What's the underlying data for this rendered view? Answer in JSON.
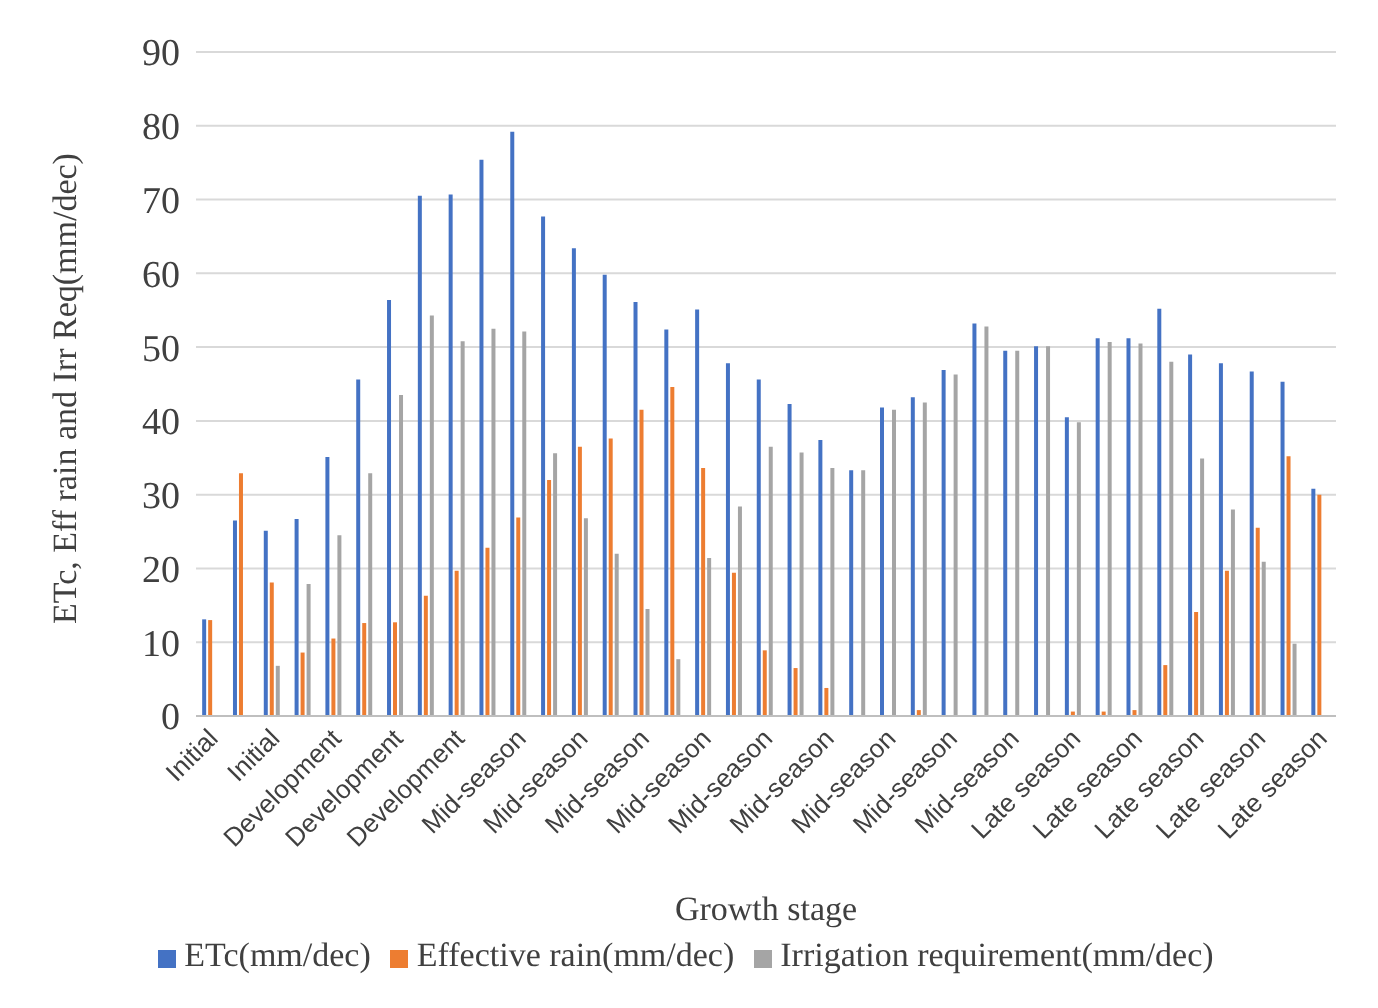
{
  "chart_data": {
    "type": "bar",
    "xlabel": "Growth stage",
    "ylabel": "ETc, Eff rain and Irr Req(mm/dec)",
    "categories": [
      "Initial",
      null,
      "Initial",
      null,
      "Development",
      null,
      "Development",
      null,
      "Development",
      null,
      "Mid-season",
      null,
      "Mid-season",
      null,
      "Mid-season",
      null,
      "Mid-season",
      null,
      "Mid-season",
      null,
      "Mid-season",
      null,
      "Mid-season",
      null,
      "Mid-season",
      null,
      "Mid-season",
      null,
      "Late season",
      null,
      "Late season",
      null,
      "Late season",
      null,
      "Late season",
      null,
      "Late season"
    ],
    "series": [
      {
        "name": "ETc(mm/dec)",
        "color": "#4472c4",
        "values": [
          13.1,
          26.5,
          25.1,
          26.7,
          35.1,
          45.6,
          56.4,
          70.5,
          70.7,
          75.4,
          79.2,
          67.7,
          63.4,
          59.8,
          56.1,
          52.4,
          55.1,
          47.8,
          45.6,
          42.3,
          37.4,
          33.3,
          41.8,
          43.2,
          46.9,
          53.2,
          49.5,
          50.1,
          40.5,
          51.2,
          51.2,
          55.2,
          49.0,
          47.8,
          46.7,
          45.3,
          30.8
        ]
      },
      {
        "name": "Effective rain(mm/dec)",
        "color": "#ed7d31",
        "values": [
          13.0,
          32.9,
          18.1,
          8.6,
          10.5,
          12.6,
          12.7,
          16.3,
          19.7,
          22.8,
          26.9,
          32.0,
          36.5,
          37.6,
          41.5,
          44.6,
          33.6,
          19.4,
          8.9,
          6.5,
          3.8,
          0,
          null,
          0.8,
          null,
          null,
          0,
          0,
          0.6,
          0.6,
          0.8,
          6.9,
          14.1,
          19.7,
          25.5,
          35.2,
          30.0
        ]
      },
      {
        "name": "Irrigation requirement(mm/dec)",
        "color": "#a5a5a5",
        "values": [
          0,
          0,
          6.8,
          17.9,
          24.5,
          32.9,
          43.5,
          54.3,
          50.8,
          52.5,
          52.1,
          35.6,
          26.8,
          22.0,
          14.5,
          7.7,
          21.4,
          28.4,
          36.5,
          35.7,
          33.6,
          33.3,
          41.5,
          42.5,
          46.3,
          52.8,
          49.5,
          50.1,
          39.8,
          50.7,
          50.5,
          48.0,
          34.9,
          28.0,
          20.9,
          9.8,
          0
        ]
      }
    ],
    "ylim": [
      0,
      90
    ],
    "yticks": [
      0,
      10,
      20,
      30,
      40,
      50,
      60,
      70,
      80,
      90
    ],
    "grid": "y",
    "legend": "bottom"
  }
}
